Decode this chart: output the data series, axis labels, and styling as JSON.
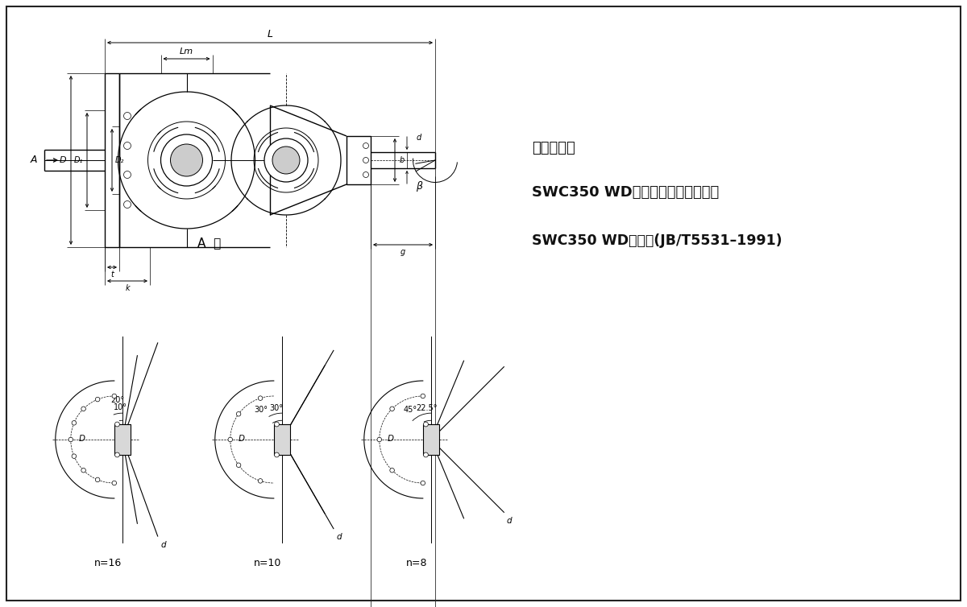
{
  "bg_color": "#ffffff",
  "line_color": "#000000",
  "dim_color": "#000000",
  "title_label": "标记示例：",
  "desc_line1": "SWC350 WD型无伸缩短万向联轴器",
  "desc_line2": "SWC350 WD联轴器(JB/T5531–1991)",
  "A_label": "A  向",
  "n16_label": "n=16",
  "n10_label": "n=10",
  "n8_label": "n=8",
  "angle1a": "10°",
  "angle1b": "20°",
  "angle2a": "30°",
  "angle2b": "30°",
  "angle3a": "22.5°",
  "angle3b": "45°"
}
